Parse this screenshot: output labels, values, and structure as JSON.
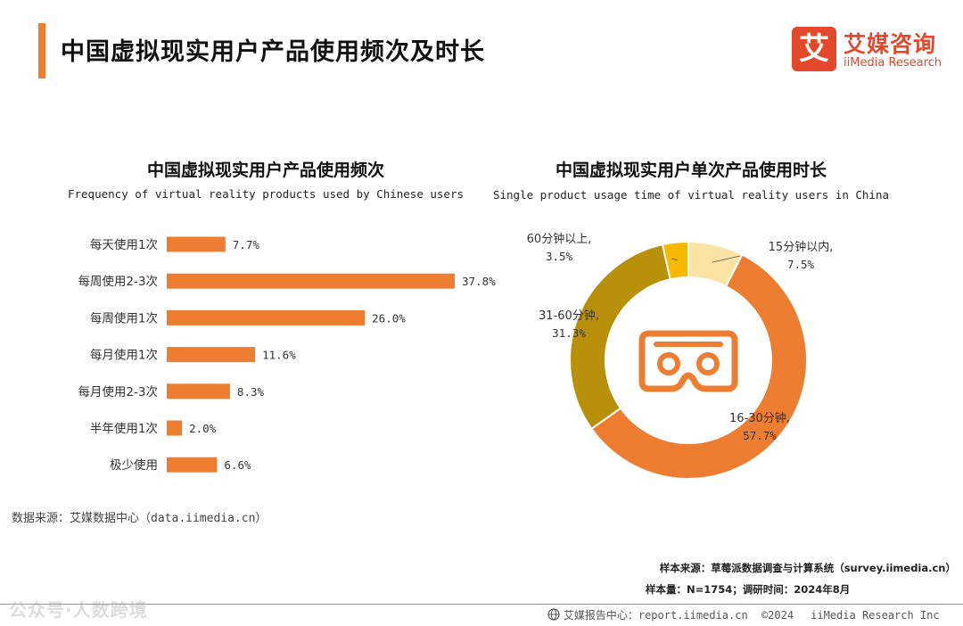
{
  "page": {
    "title": "中国虚拟现实用户产品使用频次及时长",
    "accent_color": "#ed7d31"
  },
  "logo": {
    "badge_char": "艾",
    "name_cn": "艾媒咨询",
    "name_en": "iiMedia Research",
    "color": "#e4482b"
  },
  "chart_data": [
    {
      "type": "bar",
      "orientation": "horizontal",
      "title": "中国虚拟现实用户产品使用频次",
      "subtitle": "Frequency of virtual reality products used by Chinese users",
      "categories": [
        "每天使用1次",
        "每周使用2-3次",
        "每周使用1次",
        "每月使用1次",
        "每月使用2-3次",
        "半年使用1次",
        "极少使用"
      ],
      "values": [
        7.7,
        37.8,
        26.0,
        11.6,
        8.3,
        2.0,
        6.6
      ],
      "value_labels": [
        "7.7%",
        "37.8%",
        "26.0%",
        "11.6%",
        "8.3%",
        "2.0%",
        "6.6%"
      ],
      "unit": "%",
      "color": "#ed7d31",
      "grid": false
    },
    {
      "type": "pie",
      "style": "donut",
      "title": "中国虚拟现实用户单次产品使用时长",
      "subtitle": "Single product usage time of virtual reality users in China",
      "slices": [
        {
          "label": "15分钟以内",
          "value": 7.5,
          "value_label": "7.5%",
          "color": "#fbe3a4"
        },
        {
          "label": "16-30分钟",
          "value": 57.7,
          "value_label": "57.7%",
          "color": "#ed7d31"
        },
        {
          "label": "31-60分钟",
          "value": 31.3,
          "value_label": "31.3%",
          "color": "#b8900a"
        },
        {
          "label": "60分钟以上",
          "value": 3.5,
          "value_label": "3.5%",
          "color": "#f6b800"
        }
      ],
      "center_icon": "vr-headset-icon",
      "icon_color": "#ed7d31"
    }
  ],
  "source_left": {
    "label": "数据来源：艾媒数据中心",
    "value": "（data.iimedia.cn）"
  },
  "notes": {
    "source": "样本来源：草莓派数据调查与计算系统（survey.iimedia.cn）",
    "sample": "样本量：N=1754；调研时间：2024年8月"
  },
  "footer": {
    "org": "艾媒报告中心：",
    "url": "report.iimedia.cn",
    "copyright": "©2024",
    "company": "iiMedia Research Inc",
    "icon": "globe-icon"
  },
  "watermark": "公众号·人数跨境"
}
